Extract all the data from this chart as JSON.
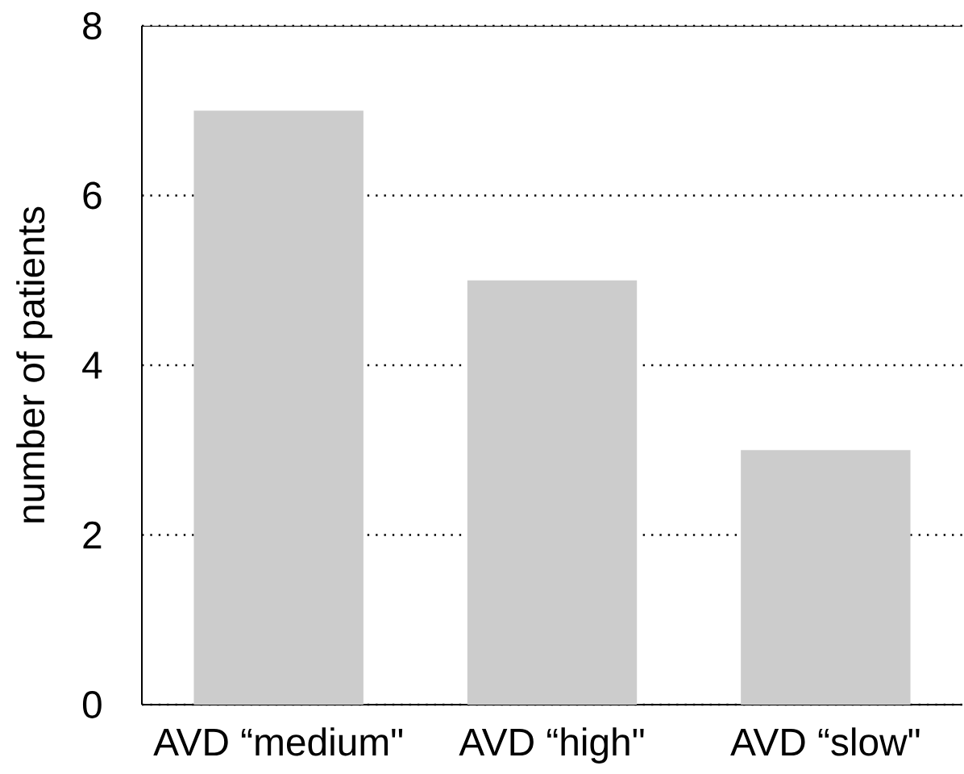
{
  "chart_data": {
    "type": "bar",
    "ylabel": "number of patients",
    "categories": [
      "AVD “medium\"",
      "AVD “high\"",
      "AVD “slow\""
    ],
    "values": [
      7,
      5,
      3
    ],
    "color": "#cccccc",
    "ylim": [
      0,
      8
    ],
    "yticks": [
      0,
      2,
      4,
      6,
      8
    ],
    "grid": "y"
  }
}
